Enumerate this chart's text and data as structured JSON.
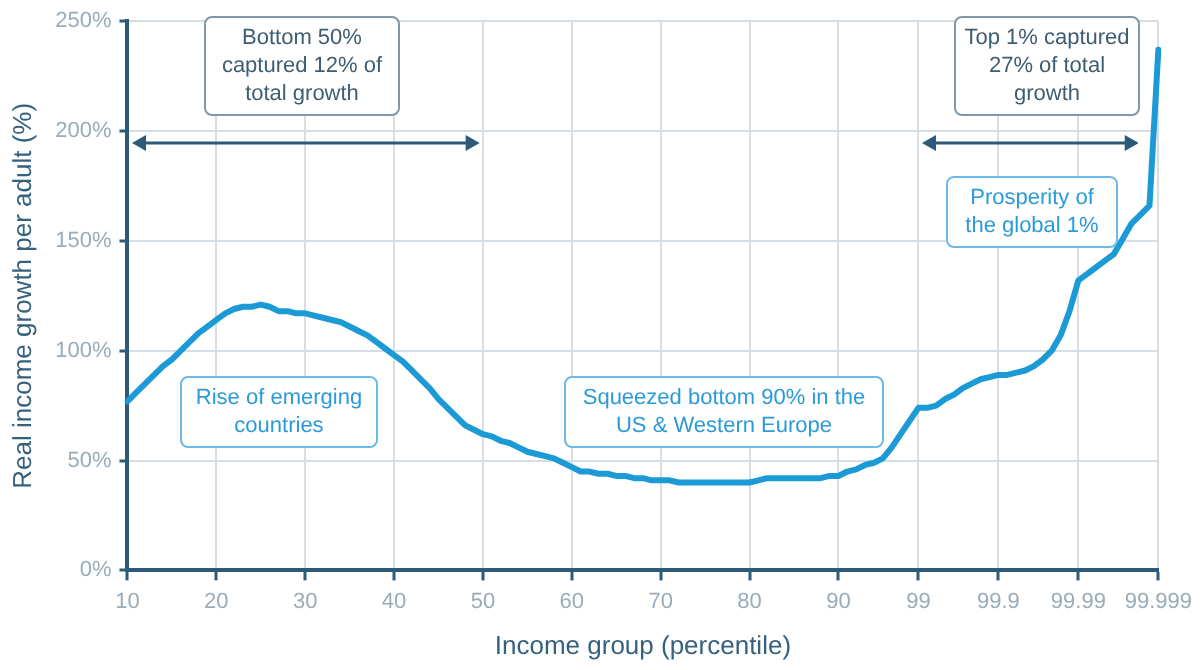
{
  "chart_data": {
    "type": "line",
    "xlabel": "Income group (percentile)",
    "ylabel": "Real income growth per adult (%)",
    "categories": [
      "10",
      null,
      null,
      null,
      null,
      null,
      null,
      null,
      null,
      null,
      "20",
      null,
      null,
      null,
      null,
      null,
      null,
      null,
      null,
      null,
      "30",
      null,
      null,
      null,
      null,
      null,
      null,
      null,
      null,
      null,
      "40",
      null,
      null,
      null,
      null,
      null,
      null,
      null,
      null,
      null,
      "50",
      null,
      null,
      null,
      null,
      null,
      null,
      null,
      null,
      null,
      "60",
      null,
      null,
      null,
      null,
      null,
      null,
      null,
      null,
      null,
      "70",
      null,
      null,
      null,
      null,
      null,
      null,
      null,
      null,
      null,
      "80",
      null,
      null,
      null,
      null,
      null,
      null,
      null,
      null,
      null,
      "90",
      null,
      null,
      null,
      null,
      null,
      null,
      null,
      null,
      "99",
      null,
      null,
      null,
      null,
      null,
      null,
      null,
      null,
      "99.9",
      null,
      null,
      null,
      null,
      null,
      null,
      null,
      null,
      "99.99",
      null,
      null,
      null,
      null,
      null,
      null,
      null,
      null,
      "99.999"
    ],
    "series": [
      {
        "color": "#1b9ad6",
        "values": [
          77,
          81,
          85,
          89,
          93,
          96,
          100,
          104,
          108,
          111,
          114,
          117,
          119,
          120,
          120,
          121,
          120,
          118,
          118,
          117,
          117,
          116,
          115,
          114,
          113,
          111,
          109,
          107,
          104,
          101,
          98,
          95,
          91,
          87,
          83,
          78,
          74,
          70,
          66,
          64,
          62,
          61,
          59,
          58,
          56,
          54,
          53,
          52,
          51,
          49,
          47,
          45,
          45,
          44,
          44,
          43,
          43,
          42,
          42,
          41,
          41,
          41,
          40,
          40,
          40,
          40,
          40,
          40,
          40,
          40,
          40,
          41,
          42,
          42,
          42,
          42,
          42,
          42,
          42,
          43,
          43,
          45,
          46,
          48,
          49,
          51,
          56,
          62,
          68,
          74,
          74,
          75,
          78,
          80,
          83,
          85,
          87,
          88,
          89,
          89,
          90,
          91,
          93,
          96,
          100,
          107,
          118,
          132,
          135,
          138,
          141,
          144,
          151,
          158,
          162,
          166,
          237
        ]
      }
    ],
    "ylim": [
      0,
      250
    ],
    "yticks": [
      {
        "value": 0,
        "label": "0%"
      },
      {
        "value": 50,
        "label": "50%"
      },
      {
        "value": 100,
        "label": "100%"
      },
      {
        "value": 150,
        "label": "150%"
      },
      {
        "value": 200,
        "label": "200%"
      },
      {
        "value": 250,
        "label": "250%"
      }
    ],
    "grid": true,
    "legend": false,
    "marker": "none",
    "line_style": "solid",
    "annotations": [
      "Bottom 50% captured 12% of total growth",
      "Top 1% captured 27% of total growth",
      "Prosperity of the global 1%",
      "Rise of emerging countries",
      "Squeezed bottom 90% in the US & Western Europe"
    ]
  }
}
